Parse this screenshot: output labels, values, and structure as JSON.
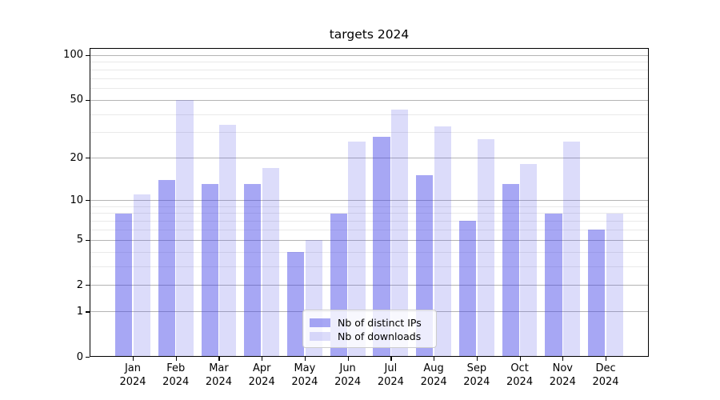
{
  "chart_data": {
    "type": "bar",
    "title": "targets 2024",
    "categories": [
      "Jan",
      "Feb",
      "Mar",
      "Apr",
      "May",
      "Jun",
      "Jul",
      "Aug",
      "Sep",
      "Oct",
      "Nov",
      "Dec"
    ],
    "year_suffix": "2024",
    "series": [
      {
        "name": "Nb of distinct IPs",
        "color": "rgba(60,60,230,0.45)",
        "values": [
          8,
          14,
          13,
          13,
          4,
          8,
          28,
          15,
          7,
          13,
          8,
          6
        ]
      },
      {
        "name": "Nb of downloads",
        "color": "rgba(80,80,230,0.20)",
        "values": [
          11,
          50,
          34,
          17,
          5,
          26,
          43,
          33,
          27,
          18,
          26,
          8
        ]
      }
    ],
    "yscale": "log1p",
    "ylim": [
      0,
      111
    ],
    "yticks_major": [
      0,
      1,
      2,
      5,
      10,
      20,
      50,
      100
    ],
    "yticks_minor": [
      3,
      4,
      6,
      7,
      8,
      9,
      30,
      40,
      60,
      70,
      80,
      90
    ],
    "grid": "both",
    "legend_position": "inside-bottom-center",
    "grid_major_color": "#b4b4b4",
    "grid_minor_color": "#e9e9e9"
  }
}
